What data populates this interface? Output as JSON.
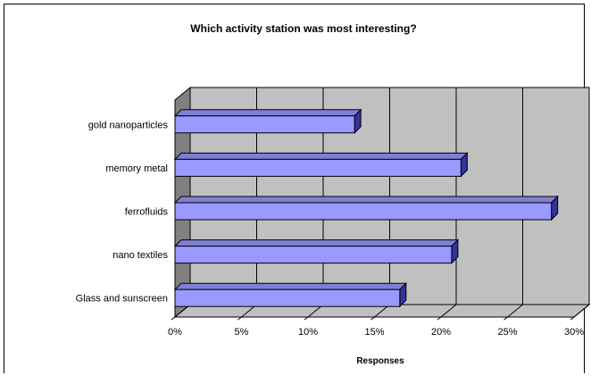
{
  "chart_data": {
    "type": "bar",
    "orientation": "horizontal",
    "title": "Which activity station was most interesting?",
    "xlabel": "Responses",
    "ylabel": "",
    "categories": [
      "gold nanoparticles",
      "memory metal",
      "ferrofluids",
      "nano textiles",
      "Glass and sunscreen"
    ],
    "values": [
      13.5,
      21.5,
      28.3,
      20.8,
      16.9
    ],
    "unit": "%",
    "xlim": [
      0,
      30
    ],
    "xticks": [
      "0%",
      "5%",
      "10%",
      "15%",
      "20%",
      "25%",
      "30%"
    ],
    "grid": true,
    "colors": {
      "bar_front": "#9999ff",
      "bar_top": "#7f7fd5",
      "bar_side": "#333399",
      "plot_back": "#c0c0c0",
      "side_wall": "#808080",
      "floor": "#c0c0c0"
    }
  }
}
